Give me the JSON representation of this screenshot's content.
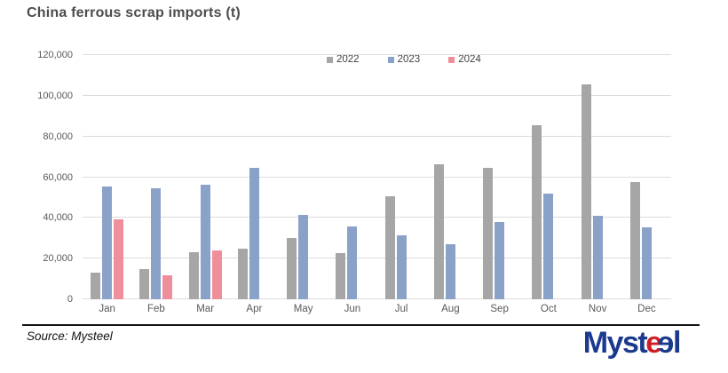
{
  "title": "China ferrous scrap imports (t)",
  "footer": {
    "source_text": "Source: Mysteel",
    "logo": {
      "prefix": "Myst",
      "e_red": "e",
      "e_blue": "e",
      "suffix": "l"
    }
  },
  "colors": {
    "series_2022": "#a6a6a6",
    "series_2023": "#8aa1c8",
    "series_2024": "#ef8f9b",
    "gridline": "#dcdcdc",
    "title_text": "#4c4c4c",
    "axis_text": "#595959",
    "logo_navy": "#1b3a8e",
    "logo_red": "#ce1f26"
  },
  "chart_data": {
    "type": "bar",
    "title": "China ferrous scrap imports (t)",
    "xlabel": "",
    "ylabel": "",
    "ylim": [
      0,
      120000
    ],
    "grid": true,
    "legend_position": "top-center",
    "yticks": [
      {
        "value": 0,
        "label": "0"
      },
      {
        "value": 20000,
        "label": "20,000"
      },
      {
        "value": 40000,
        "label": "40,000"
      },
      {
        "value": 60000,
        "label": "60,000"
      },
      {
        "value": 80000,
        "label": "80,000"
      },
      {
        "value": 100000,
        "label": "100,000"
      },
      {
        "value": 120000,
        "label": "120,000"
      }
    ],
    "categories": [
      "Jan",
      "Feb",
      "Mar",
      "Apr",
      "May",
      "Jun",
      "Jul",
      "Aug",
      "Sep",
      "Oct",
      "Nov",
      "Dec"
    ],
    "series": [
      {
        "name": "2022",
        "color": "#a6a6a6",
        "values": [
          13000,
          15000,
          23000,
          25000,
          30000,
          22500,
          50500,
          66500,
          64500,
          85500,
          105500,
          57500
        ]
      },
      {
        "name": "2023",
        "color": "#8aa1c8",
        "values": [
          55500,
          54500,
          56500,
          64500,
          41500,
          36000,
          31500,
          27000,
          38000,
          52000,
          41000,
          35500
        ]
      },
      {
        "name": "2024",
        "color": "#ef8f9b",
        "values": [
          39500,
          12000,
          24000,
          null,
          null,
          null,
          null,
          null,
          null,
          null,
          null,
          null
        ]
      }
    ]
  }
}
